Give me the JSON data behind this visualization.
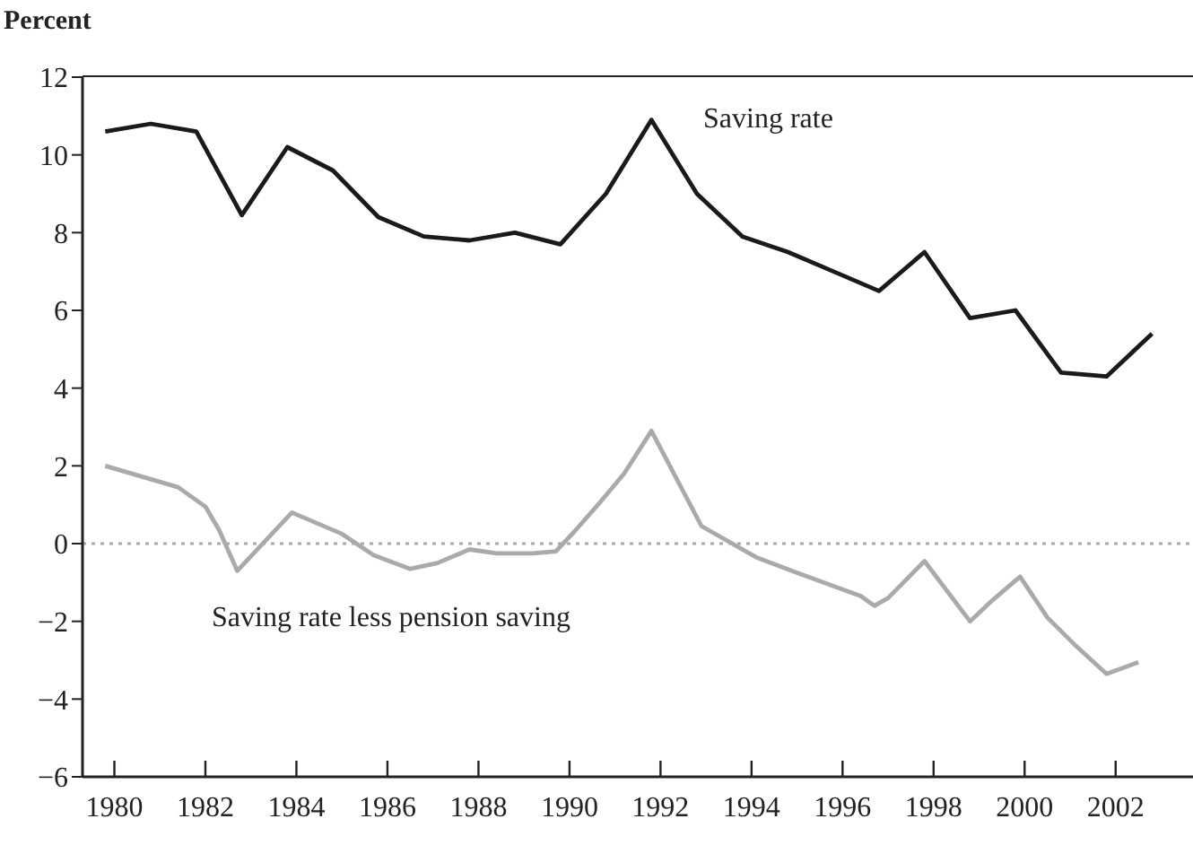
{
  "chart_data": {
    "type": "line",
    "ylabel": "Percent",
    "xlim": [
      1979.3,
      2003.7
    ],
    "xticks": [
      1980,
      1982,
      1984,
      1986,
      1988,
      1990,
      1992,
      1994,
      1996,
      1998,
      2000,
      2002
    ],
    "ylim": [
      -6,
      12
    ],
    "yticks": [
      -6,
      -4,
      -2,
      0,
      2,
      4,
      6,
      8,
      10,
      12
    ],
    "grid": false,
    "legend": false,
    "marker": "none",
    "line_style": "solid",
    "series": [
      {
        "color": "#1a1a1a",
        "x": [
          1979.8,
          1980.8,
          1981.8,
          1982.8,
          1983.8,
          1984.8,
          1985.8,
          1986.8,
          1987.8,
          1988.8,
          1989.8,
          1990.8,
          1991.8,
          1992.8,
          1993.8,
          1994.8,
          1995.8,
          1996.8,
          1997.8,
          1998.8,
          1999.8,
          2000.8,
          2001.8,
          2002.8
        ],
        "values": [
          10.6,
          10.8,
          10.6,
          8.45,
          10.2,
          9.6,
          8.4,
          7.9,
          7.8,
          8.0,
          7.7,
          9.0,
          10.9,
          9.0,
          7.9,
          7.5,
          7.0,
          6.5,
          7.5,
          5.8,
          6.0,
          4.4,
          4.3,
          5.4
        ]
      },
      {
        "color": "#aaaaaa",
        "x": [
          1979.8,
          1981.4,
          1982.0,
          1982.3,
          1982.7,
          1983.9,
          1985.0,
          1985.7,
          1986.5,
          1987.1,
          1987.8,
          1988.4,
          1989.2,
          1989.7,
          1990.1,
          1990.7,
          1991.2,
          1991.8,
          1992.9,
          1994.1,
          1995.0,
          1996.4,
          1996.7,
          1997.0,
          1997.8,
          1998.8,
          1999.3,
          1999.9,
          2000.5,
          2001.1,
          2001.8,
          2002.5
        ],
        "values": [
          2.0,
          1.45,
          0.95,
          0.35,
          -0.7,
          0.8,
          0.25,
          -0.3,
          -0.65,
          -0.5,
          -0.15,
          -0.25,
          -0.25,
          -0.2,
          0.3,
          1.1,
          1.8,
          2.9,
          0.45,
          -0.35,
          -0.75,
          -1.35,
          -1.6,
          -1.4,
          -0.45,
          -2.0,
          -1.45,
          -0.85,
          -1.9,
          -2.6,
          -3.35,
          -3.05
        ]
      }
    ],
    "ref_lines": [
      {
        "axis": "y",
        "value": 0,
        "color": "#aaaaaa",
        "line_style": "dotted"
      }
    ],
    "annotations": [
      "Saving rate",
      "Saving rate less pension saving"
    ]
  }
}
